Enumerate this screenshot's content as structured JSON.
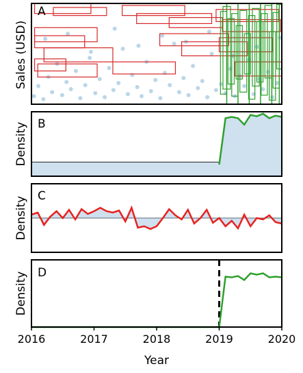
{
  "chart_data": [
    {
      "panel_label": "A",
      "type": "scatter",
      "ylabel": "Sales (USD)",
      "xlim": [
        2016,
        2020
      ],
      "scatter_color": "#1f77b4",
      "red_box_color": "#d62728",
      "green_box_color": "#2ca02c",
      "scatter_x": [
        2016.04,
        2016.11,
        2016.19,
        2016.27,
        2016.33,
        2016.41,
        2016.49,
        2016.56,
        2016.63,
        2016.71,
        2016.78,
        2016.86,
        2016.93,
        2017.02,
        2017.09,
        2017.17,
        2017.24,
        2017.31,
        2017.39,
        2017.46,
        2017.54,
        2017.61,
        2017.69,
        2017.76,
        2017.84,
        2017.91,
        2017.98,
        2018.06,
        2018.13,
        2018.21,
        2018.28,
        2018.36,
        2018.43,
        2018.51,
        2018.58,
        2018.66,
        2018.73,
        2018.81,
        2018.88,
        2018.95,
        2019.03,
        2019.1,
        2019.18,
        2019.25,
        2019.33,
        2019.4,
        2019.48,
        2019.55,
        2019.63,
        2019.7,
        2019.78,
        2019.85,
        2019.93,
        2016.22,
        2016.58,
        2016.95,
        2017.33,
        2017.71,
        2018.09,
        2018.47,
        2018.84,
        2019.22,
        2019.6,
        2019.97
      ],
      "scatter_y": [
        0.08,
        0.18,
        0.05,
        0.27,
        0.12,
        0.4,
        0.09,
        0.22,
        0.15,
        0.33,
        0.06,
        0.19,
        0.46,
        0.11,
        0.25,
        0.07,
        0.36,
        0.14,
        0.21,
        0.55,
        0.1,
        0.29,
        0.17,
        0.08,
        0.42,
        0.13,
        0.24,
        0.06,
        0.31,
        0.19,
        0.6,
        0.12,
        0.26,
        0.09,
        0.38,
        0.16,
        0.23,
        0.07,
        0.5,
        0.14,
        0.2,
        0.11,
        0.35,
        0.08,
        0.28,
        0.18,
        0.44,
        0.1,
        0.25,
        0.15,
        0.32,
        0.07,
        0.21,
        0.65,
        0.7,
        0.52,
        0.75,
        0.58,
        0.68,
        0.62,
        0.72,
        0.48,
        0.57,
        0.66
      ],
      "red_boxes": [
        {
          "x0": 2016.05,
          "x1": 2016.95,
          "y0": 0.9,
          "y1": 1.0
        },
        {
          "x0": 2016.35,
          "x1": 2017.2,
          "y0": 0.88,
          "y1": 0.96
        },
        {
          "x0": 2017.45,
          "x1": 2018.45,
          "y0": 0.88,
          "y1": 0.98
        },
        {
          "x0": 2017.68,
          "x1": 2018.88,
          "y0": 0.8,
          "y1": 0.9
        },
        {
          "x0": 2018.2,
          "x1": 2019.05,
          "y0": 0.76,
          "y1": 0.86
        },
        {
          "x0": 2018.95,
          "x1": 2019.95,
          "y0": 0.82,
          "y1": 0.94
        },
        {
          "x0": 2019.05,
          "x1": 2019.98,
          "y0": 0.72,
          "y1": 0.84
        },
        {
          "x0": 2016.05,
          "x1": 2017.05,
          "y0": 0.62,
          "y1": 0.76
        },
        {
          "x0": 2016.05,
          "x1": 2016.85,
          "y0": 0.56,
          "y1": 0.68
        },
        {
          "x0": 2016.2,
          "x1": 2017.3,
          "y0": 0.42,
          "y1": 0.56
        },
        {
          "x0": 2018.05,
          "x1": 2019.15,
          "y0": 0.58,
          "y1": 0.7
        },
        {
          "x0": 2018.4,
          "x1": 2019.45,
          "y0": 0.48,
          "y1": 0.62
        },
        {
          "x0": 2016.05,
          "x1": 2016.55,
          "y0": 0.33,
          "y1": 0.45
        },
        {
          "x0": 2016.1,
          "x1": 2017.05,
          "y0": 0.27,
          "y1": 0.4
        },
        {
          "x0": 2017.3,
          "x1": 2018.3,
          "y0": 0.3,
          "y1": 0.42
        },
        {
          "x0": 2019.25,
          "x1": 2020.0,
          "y0": 0.28,
          "y1": 0.42
        },
        {
          "x0": 2019.0,
          "x1": 2019.85,
          "y0": 0.52,
          "y1": 0.66
        }
      ],
      "green_boxes": [
        {
          "x0": 2019.02,
          "x1": 2019.12,
          "y0": 0.1,
          "y1": 0.92
        },
        {
          "x0": 2019.06,
          "x1": 2019.18,
          "y0": 0.15,
          "y1": 0.97
        },
        {
          "x0": 2019.14,
          "x1": 2019.24,
          "y0": 0.2,
          "y1": 0.85
        },
        {
          "x0": 2019.2,
          "x1": 2019.3,
          "y0": 0.08,
          "y1": 0.9
        },
        {
          "x0": 2019.27,
          "x1": 2019.37,
          "y0": 0.25,
          "y1": 0.78
        },
        {
          "x0": 2019.33,
          "x1": 2019.44,
          "y0": 0.12,
          "y1": 0.93
        },
        {
          "x0": 2019.4,
          "x1": 2019.5,
          "y0": 0.3,
          "y1": 0.7
        },
        {
          "x0": 2019.47,
          "x1": 2019.57,
          "y0": 0.05,
          "y1": 0.88
        },
        {
          "x0": 2019.53,
          "x1": 2019.64,
          "y0": 0.18,
          "y1": 0.95
        },
        {
          "x0": 2019.6,
          "x1": 2019.7,
          "y0": 0.22,
          "y1": 0.82
        },
        {
          "x0": 2019.67,
          "x1": 2019.77,
          "y0": 0.09,
          "y1": 0.9
        },
        {
          "x0": 2019.73,
          "x1": 2019.84,
          "y0": 0.26,
          "y1": 0.98
        },
        {
          "x0": 2019.8,
          "x1": 2019.9,
          "y0": 0.04,
          "y1": 0.72
        },
        {
          "x0": 2019.86,
          "x1": 2019.96,
          "y0": 0.16,
          "y1": 0.91
        },
        {
          "x0": 2019.92,
          "x1": 2020.0,
          "y0": 0.35,
          "y1": 0.99
        }
      ],
      "green_vlines": [
        2019.12,
        2019.3,
        2019.48,
        2019.66,
        2019.84,
        2019.96
      ]
    },
    {
      "panel_label": "B",
      "type": "line",
      "ylabel": "Density",
      "xlim": [
        2016,
        2020
      ],
      "ylim": [
        0,
        1
      ],
      "line_color": "#2ca02c",
      "fill_color": "#cfe0ef",
      "baseline": 0.22,
      "x": [
        2019.0,
        2019.1,
        2019.2,
        2019.3,
        2019.4,
        2019.5,
        2019.6,
        2019.7,
        2019.8,
        2019.9,
        2020.0
      ],
      "y": [
        0.18,
        0.9,
        0.92,
        0.9,
        0.8,
        0.95,
        0.93,
        0.97,
        0.9,
        0.94,
        0.92
      ]
    },
    {
      "panel_label": "C",
      "type": "line",
      "ylabel": "Density",
      "xlim": [
        2016,
        2020
      ],
      "ylim": [
        0,
        1
      ],
      "line_color": "#e8211d",
      "fill_color": "#cfe0ef",
      "baseline": 0.5,
      "x": [
        2016.0,
        2016.1,
        2016.2,
        2016.3,
        2016.4,
        2016.5,
        2016.6,
        2016.7,
        2016.8,
        2016.9,
        2017.0,
        2017.1,
        2017.2,
        2017.3,
        2017.4,
        2017.5,
        2017.6,
        2017.7,
        2017.8,
        2017.9,
        2018.0,
        2018.1,
        2018.2,
        2018.3,
        2018.4,
        2018.5,
        2018.6,
        2018.7,
        2018.8,
        2018.9,
        2019.0,
        2019.1,
        2019.2,
        2019.3,
        2019.4,
        2019.5,
        2019.6,
        2019.7,
        2019.8,
        2019.9,
        2020.0
      ],
      "y": [
        0.55,
        0.58,
        0.4,
        0.52,
        0.6,
        0.5,
        0.62,
        0.48,
        0.63,
        0.56,
        0.6,
        0.65,
        0.6,
        0.58,
        0.61,
        0.45,
        0.65,
        0.36,
        0.38,
        0.34,
        0.38,
        0.5,
        0.63,
        0.54,
        0.48,
        0.62,
        0.42,
        0.5,
        0.62,
        0.43,
        0.5,
        0.38,
        0.46,
        0.35,
        0.55,
        0.38,
        0.5,
        0.48,
        0.54,
        0.44,
        0.42
      ]
    },
    {
      "panel_label": "D",
      "type": "line",
      "ylabel": "Density",
      "xlabel": "Year",
      "xlim": [
        2016,
        2020
      ],
      "ylim": [
        0,
        1
      ],
      "line_color": "#2ca02c",
      "vline_x": 2019.0,
      "x_ticks": [
        "2016",
        "2017",
        "2018",
        "2019",
        "2020"
      ],
      "x": [
        2016.0,
        2019.0,
        2019.1,
        2019.2,
        2019.3,
        2019.4,
        2019.5,
        2019.6,
        2019.7,
        2019.8,
        2019.9,
        2020.0
      ],
      "y": [
        0.0,
        0.0,
        0.75,
        0.74,
        0.76,
        0.7,
        0.8,
        0.78,
        0.8,
        0.74,
        0.75,
        0.74
      ]
    }
  ]
}
